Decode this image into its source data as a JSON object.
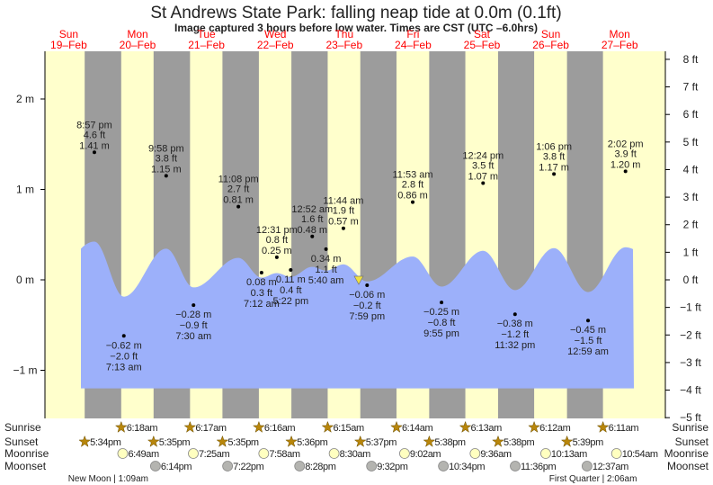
{
  "chart_data": {
    "type": "area",
    "title": "St Andrews State Park: falling  neap tide at 0.0m (0.1ft)",
    "subtitle": "Image captured 3 hours before low water. Times are CST (UTC –6.0hrs)",
    "days": [
      {
        "dow": "Sun",
        "date": "19–Feb"
      },
      {
        "dow": "Mon",
        "date": "20–Feb"
      },
      {
        "dow": "Tue",
        "date": "21–Feb"
      },
      {
        "dow": "Wed",
        "date": "22–Feb"
      },
      {
        "dow": "Thu",
        "date": "23–Feb"
      },
      {
        "dow": "Fri",
        "date": "24–Feb"
      },
      {
        "dow": "Sat",
        "date": "25–Feb"
      },
      {
        "dow": "Sun",
        "date": "26–Feb"
      },
      {
        "dow": "Mon",
        "date": "27–Feb"
      }
    ],
    "y_left": {
      "unit": "m",
      "ticks": [
        "2 m",
        "1 m",
        "0 m",
        "−1 m"
      ],
      "values": [
        2,
        1,
        0,
        -1
      ]
    },
    "y_right": {
      "unit": "ft",
      "ticks": [
        "8 ft",
        "7 ft",
        "6 ft",
        "5 ft",
        "4 ft",
        "3 ft",
        "2 ft",
        "1 ft",
        "0 ft",
        "−1 ft",
        "−2 ft",
        "−3 ft",
        "−4 ft",
        "−5 ft"
      ],
      "values": [
        8,
        7,
        6,
        5,
        4,
        3,
        2,
        1,
        0,
        -1,
        -2,
        -3,
        -4,
        -5
      ]
    },
    "extremes": [
      {
        "day": 19,
        "hour": 20.95,
        "time": "8:57 pm",
        "ft": "4.6 ft",
        "m": "1.41 m",
        "value": 1.41,
        "type": "high"
      },
      {
        "day": 20,
        "hour": 7.22,
        "time": "7:13 am",
        "ft": "−2.0 ft",
        "m": "−0.62 m",
        "value": -0.62,
        "type": "low"
      },
      {
        "day": 20,
        "hour": 21.97,
        "time": "9:58 pm",
        "ft": "3.8 ft",
        "m": "1.15 m",
        "value": 1.15,
        "type": "high"
      },
      {
        "day": 21,
        "hour": 7.5,
        "time": "7:30 am",
        "ft": "−0.9 ft",
        "m": "−0.28 m",
        "value": -0.28,
        "type": "low"
      },
      {
        "day": 21,
        "hour": 23.13,
        "time": "11:08 pm",
        "ft": "2.7 ft",
        "m": "0.81 m",
        "value": 0.81,
        "type": "high"
      },
      {
        "day": 22,
        "hour": 7.2,
        "time": "7:12 am",
        "ft": "0.3 ft",
        "m": "0.08 m",
        "value": 0.08,
        "type": "low"
      },
      {
        "day": 22,
        "hour": 12.52,
        "time": "12:31 pm",
        "ft": "0.8 ft",
        "m": "0.25 m",
        "value": 0.25,
        "type": "high"
      },
      {
        "day": 22,
        "hour": 17.37,
        "time": "5:22 pm",
        "ft": "0.4 ft",
        "m": "0.11 m",
        "value": 0.11,
        "type": "low"
      },
      {
        "day": 23,
        "hour": 0.87,
        "time": "12:52 am",
        "ft": "1.6 ft",
        "m": "0.48 m",
        "value": 0.48,
        "type": "high"
      },
      {
        "day": 23,
        "hour": 5.67,
        "time": "5:40 am",
        "ft": "1.1 ft",
        "m": "0.34 m",
        "value": 0.34,
        "type": "low"
      },
      {
        "day": 23,
        "hour": 11.73,
        "time": "11:44 am",
        "ft": "1.9 ft",
        "m": "0.57 m",
        "value": 0.57,
        "type": "high"
      },
      {
        "day": 23,
        "hour": 19.98,
        "time": "7:59 pm",
        "ft": "−0.2 ft",
        "m": "−0.06 m",
        "value": -0.06,
        "type": "low"
      },
      {
        "day": 24,
        "hour": 11.88,
        "time": "11:53 am",
        "ft": "2.8 ft",
        "m": "0.86 m",
        "value": 0.86,
        "type": "high"
      },
      {
        "day": 24,
        "hour": 21.92,
        "time": "9:55 pm",
        "ft": "−0.8 ft",
        "m": "−0.25 m",
        "value": -0.25,
        "type": "low"
      },
      {
        "day": 25,
        "hour": 12.4,
        "time": "12:24 pm",
        "ft": "3.5 ft",
        "m": "1.07 m",
        "value": 1.07,
        "type": "high"
      },
      {
        "day": 25,
        "hour": 23.53,
        "time": "11:32 pm",
        "ft": "−1.2 ft",
        "m": "−0.38 m",
        "value": -0.38,
        "type": "low"
      },
      {
        "day": 26,
        "hour": 13.1,
        "time": "1:06 pm",
        "ft": "3.8 ft",
        "m": "1.17 m",
        "value": 1.17,
        "type": "high"
      },
      {
        "day": 27,
        "hour": 0.98,
        "time": "12:59 am",
        "ft": "−1.5 ft",
        "m": "−0.45 m",
        "value": -0.45,
        "type": "low"
      },
      {
        "day": 27,
        "hour": 14.03,
        "time": "2:02 pm",
        "ft": "3.9 ft",
        "m": "1.20 m",
        "value": 1.2,
        "type": "high"
      }
    ],
    "now": {
      "day": 23,
      "hour": 17.08,
      "value": 0.0
    },
    "colors": {
      "day": "#ffffcc",
      "night": "#9c9c9c",
      "water": "#9cb0fa",
      "day_label": "#ff0000",
      "sun": "#b8860b",
      "moonrise": "#ffffc0",
      "moonset": "#b4b4b0",
      "now_marker": "#f0e040"
    }
  },
  "rows": {
    "labels": {
      "sunrise": "Sunrise",
      "sunset": "Sunset",
      "moonrise": "Moonrise",
      "moonset": "Moonset"
    },
    "sunrise": [
      {
        "day": 20,
        "hour": 6.3,
        "t": "6:18am"
      },
      {
        "day": 21,
        "hour": 6.28,
        "t": "6:17am"
      },
      {
        "day": 22,
        "hour": 6.27,
        "t": "6:16am"
      },
      {
        "day": 23,
        "hour": 6.25,
        "t": "6:15am"
      },
      {
        "day": 24,
        "hour": 6.23,
        "t": "6:14am"
      },
      {
        "day": 25,
        "hour": 6.22,
        "t": "6:13am"
      },
      {
        "day": 26,
        "hour": 6.2,
        "t": "6:12am"
      },
      {
        "day": 27,
        "hour": 6.18,
        "t": "6:11am"
      }
    ],
    "sunset": [
      {
        "day": 19,
        "hour": 17.57,
        "t": "5:34pm"
      },
      {
        "day": 20,
        "hour": 17.58,
        "t": "5:35pm"
      },
      {
        "day": 21,
        "hour": 17.58,
        "t": "5:35pm"
      },
      {
        "day": 22,
        "hour": 17.6,
        "t": "5:36pm"
      },
      {
        "day": 23,
        "hour": 17.62,
        "t": "5:37pm"
      },
      {
        "day": 24,
        "hour": 17.63,
        "t": "5:38pm"
      },
      {
        "day": 25,
        "hour": 17.63,
        "t": "5:38pm"
      },
      {
        "day": 26,
        "hour": 17.65,
        "t": "5:39pm"
      }
    ],
    "moonrise": [
      {
        "day": 20,
        "hour": 6.82,
        "t": "6:49am"
      },
      {
        "day": 21,
        "hour": 7.42,
        "t": "7:25am"
      },
      {
        "day": 22,
        "hour": 7.97,
        "t": "7:58am"
      },
      {
        "day": 23,
        "hour": 8.5,
        "t": "8:30am"
      },
      {
        "day": 24,
        "hour": 9.03,
        "t": "9:02am"
      },
      {
        "day": 25,
        "hour": 9.6,
        "t": "9:36am"
      },
      {
        "day": 26,
        "hour": 10.22,
        "t": "10:13am"
      },
      {
        "day": 27,
        "hour": 10.9,
        "t": "10:54am"
      }
    ],
    "moonset": [
      {
        "day": 20,
        "hour": 18.23,
        "t": "6:14pm"
      },
      {
        "day": 21,
        "hour": 19.37,
        "t": "7:22pm"
      },
      {
        "day": 22,
        "hour": 20.47,
        "t": "8:28pm"
      },
      {
        "day": 23,
        "hour": 21.53,
        "t": "9:32pm"
      },
      {
        "day": 24,
        "hour": 22.57,
        "t": "10:34pm"
      },
      {
        "day": 25,
        "hour": 23.6,
        "t": "11:36pm"
      },
      {
        "day": 27,
        "hour": 0.62,
        "t": "12:37am"
      }
    ],
    "phases": [
      {
        "label": "New Moon | 1:09am",
        "day": 20,
        "hour": 1.15
      },
      {
        "label": "First Quarter | 2:06am",
        "day": 27,
        "hour": 2.1
      }
    ]
  }
}
